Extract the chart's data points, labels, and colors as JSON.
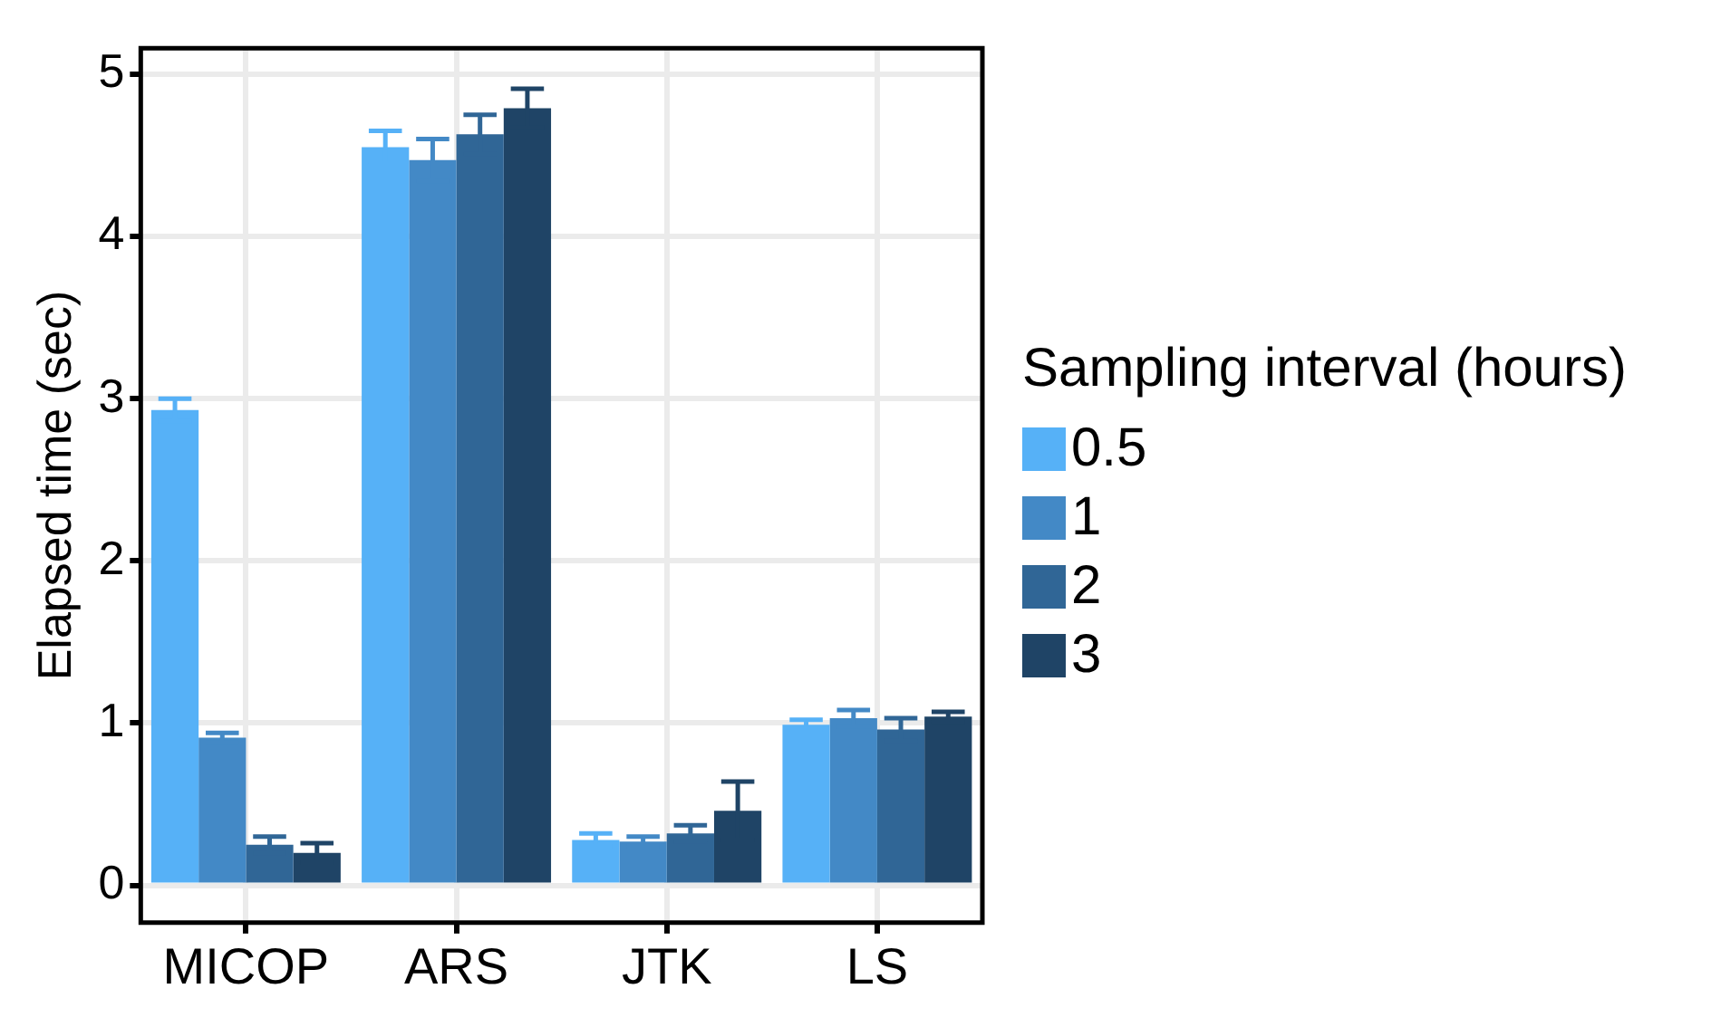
{
  "chart_data": {
    "type": "bar",
    "ylabel": "Elapsed time (sec)",
    "legend_title": "Sampling interval (hours)",
    "categories": [
      "MICOP",
      "ARS",
      "JTK",
      "LS"
    ],
    "series": [
      {
        "name": "0.5",
        "color": "#56b1f7",
        "values": [
          2.93,
          4.55,
          0.28,
          0.99
        ],
        "errors": [
          0.07,
          0.1,
          0.04,
          0.03
        ]
      },
      {
        "name": "1",
        "color": "#4389c6",
        "values": [
          0.91,
          4.47,
          0.27,
          1.03
        ],
        "errors": [
          0.03,
          0.13,
          0.03,
          0.05
        ]
      },
      {
        "name": "2",
        "color": "#306696",
        "values": [
          0.25,
          4.63,
          0.32,
          0.96
        ],
        "errors": [
          0.05,
          0.12,
          0.05,
          0.07
        ]
      },
      {
        "name": "3",
        "color": "#1f4466",
        "values": [
          0.2,
          4.79,
          0.46,
          1.04
        ],
        "errors": [
          0.06,
          0.12,
          0.18,
          0.03
        ]
      }
    ],
    "ylim": [
      -0.23,
      5.16
    ],
    "yticks": [
      0,
      1,
      2,
      3,
      4,
      5
    ],
    "grid": true,
    "legend": "right"
  }
}
